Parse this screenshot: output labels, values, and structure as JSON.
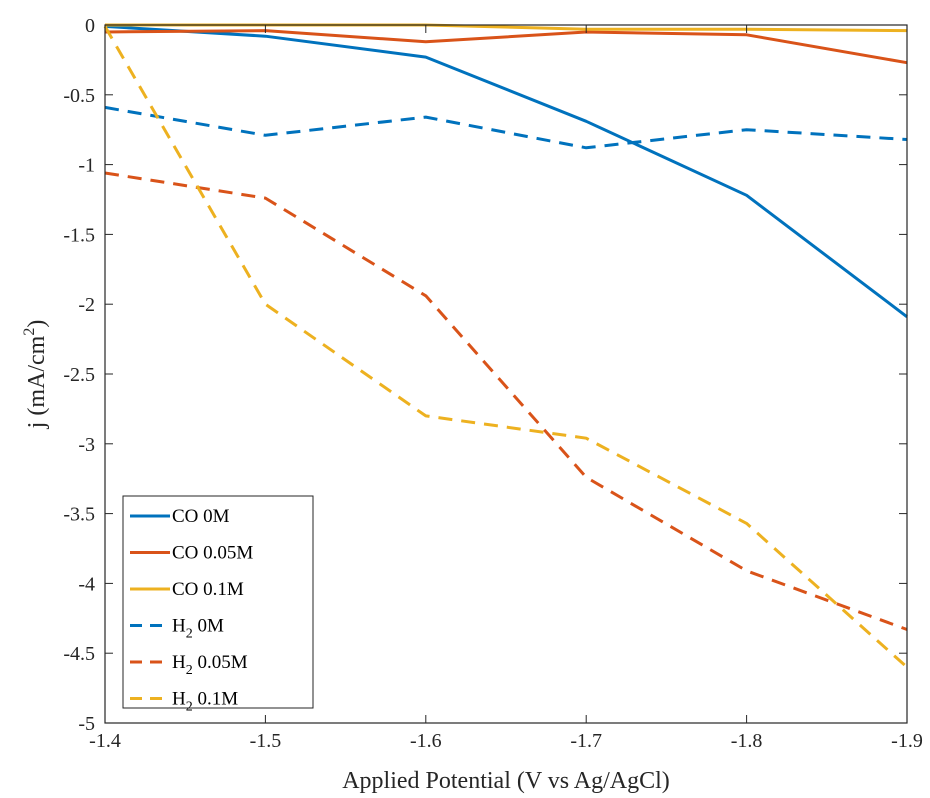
{
  "chart_data": {
    "type": "line",
    "title": "",
    "xlabel": "Applied Potential (V vs Ag/AgCl)",
    "ylabel": "j (mA/cm²)",
    "ylabel_parts": {
      "main": "j (mA/cm",
      "sup": "2",
      "end": ")"
    },
    "xlim": [
      -1.4,
      -1.9
    ],
    "ylim": [
      -5,
      0
    ],
    "x_reversed": true,
    "grid": false,
    "legend_position": "bottom-left",
    "xticks": [
      -1.4,
      -1.5,
      -1.6,
      -1.7,
      -1.8,
      -1.9
    ],
    "yticks": [
      0,
      -0.5,
      -1,
      -1.5,
      -2,
      -2.5,
      -3,
      -3.5,
      -4,
      -4.5,
      -5
    ],
    "x": [
      -1.4,
      -1.5,
      -1.6,
      -1.7,
      -1.8,
      -1.9
    ],
    "series": [
      {
        "name": "CO 0M",
        "label_main": "CO 0M",
        "color": "#0072BD",
        "dash": "solid",
        "values": [
          -0.01,
          -0.08,
          -0.23,
          -0.69,
          -1.22,
          -2.09
        ]
      },
      {
        "name": "CO 0.05M",
        "label_main": "CO 0.05M",
        "color": "#D95319",
        "dash": "solid",
        "values": [
          -0.05,
          -0.04,
          -0.12,
          -0.05,
          -0.07,
          -0.27
        ]
      },
      {
        "name": "CO 0.1M",
        "label_main": "CO 0.1M",
        "color": "#EDB120",
        "dash": "solid",
        "values": [
          0.0,
          0.0,
          0.0,
          -0.03,
          -0.03,
          -0.04
        ]
      },
      {
        "name": "H2 0M",
        "label_main": "H",
        "label_sub": "2",
        "label_rest": " 0M",
        "color": "#0072BD",
        "dash": "dashed",
        "values": [
          -0.59,
          -0.79,
          -0.66,
          -0.88,
          -0.75,
          -0.82
        ]
      },
      {
        "name": "H2 0.05M",
        "label_main": "H",
        "label_sub": "2",
        "label_rest": " 0.05M",
        "color": "#D95319",
        "dash": "dashed",
        "values": [
          -1.06,
          -1.24,
          -1.94,
          -3.24,
          -3.91,
          -4.33
        ]
      },
      {
        "name": "H2 0.1M",
        "label_main": "H",
        "label_sub": "2",
        "label_rest": " 0.1M",
        "color": "#EDB120",
        "dash": "dashed",
        "values": [
          -0.01,
          -2.0,
          -2.8,
          -2.96,
          -3.57,
          -4.6
        ]
      }
    ]
  }
}
